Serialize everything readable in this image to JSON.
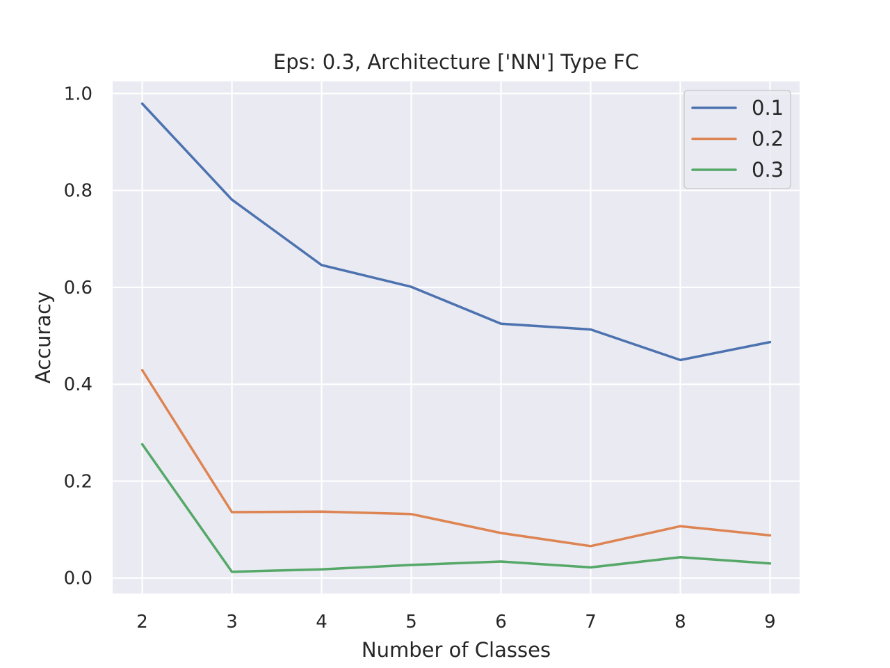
{
  "chart_data": {
    "type": "line",
    "title": "Eps: 0.3, Architecture ['NN'] Type FC",
    "xlabel": "Number of Classes",
    "ylabel": "Accuracy",
    "x": [
      2,
      3,
      4,
      5,
      6,
      7,
      8,
      9
    ],
    "xlim": [
      1.67,
      9.33
    ],
    "ylim": [
      -0.032,
      1.025
    ],
    "xticks": [
      "2",
      "3",
      "4",
      "5",
      "6",
      "7",
      "8",
      "9"
    ],
    "yticks": [
      "0.0",
      "0.2",
      "0.4",
      "0.6",
      "0.8",
      "1.0"
    ],
    "grid": true,
    "legend_position": "top-right",
    "series": [
      {
        "name": "0.1",
        "color": "#4c72b0",
        "values": [
          0.979,
          0.781,
          0.646,
          0.601,
          0.525,
          0.513,
          0.45,
          0.487
        ]
      },
      {
        "name": "0.2",
        "color": "#dd8452",
        "values": [
          0.429,
          0.136,
          0.137,
          0.132,
          0.093,
          0.066,
          0.107,
          0.088
        ]
      },
      {
        "name": "0.3",
        "color": "#55a868",
        "values": [
          0.276,
          0.013,
          0.018,
          0.027,
          0.034,
          0.022,
          0.043,
          0.03
        ]
      }
    ]
  }
}
